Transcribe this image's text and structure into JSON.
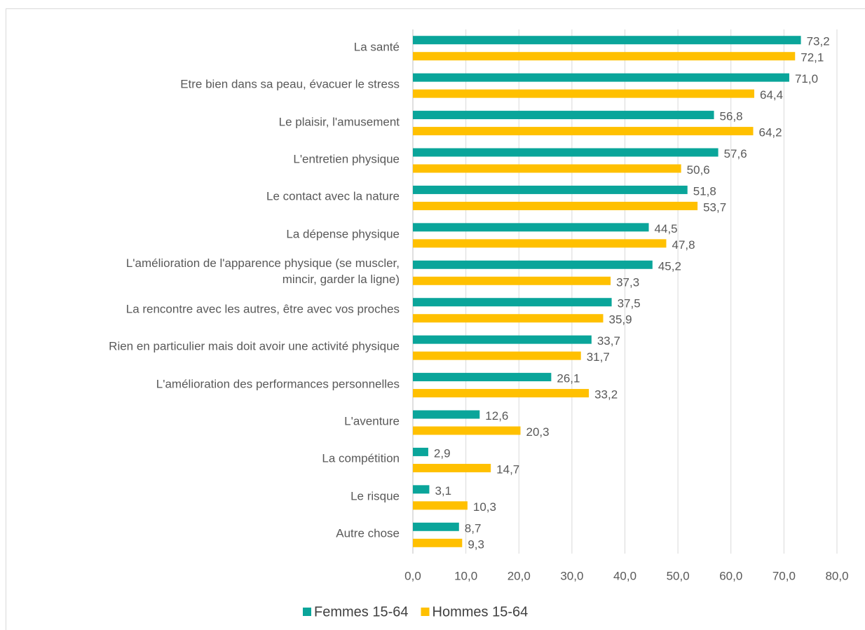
{
  "chart_data": {
    "type": "hbar",
    "categories": [
      "La santé",
      "Etre bien dans sa peau, évacuer le stress",
      "Le plaisir, l'amusement",
      "L'entretien physique",
      "Le contact avec la nature",
      "La dépense physique",
      "L'amélioration de l'apparence physique (se muscler,\nmincir, garder la ligne)",
      "La rencontre avec les autres, être avec vos proches",
      "Rien en particulier mais doit avoir une activité physique",
      "L'amélioration des performances personnelles",
      "L'aventure",
      "La compétition",
      "Le risque",
      "Autre chose"
    ],
    "series": [
      {
        "name": "Femmes 15-64",
        "color": "#0aa59a",
        "values": [
          73.2,
          71.0,
          56.8,
          57.6,
          51.8,
          44.5,
          45.2,
          37.5,
          33.7,
          26.1,
          12.6,
          2.9,
          3.1,
          8.7
        ],
        "value_labels": [
          "73,2",
          "71,0",
          "56,8",
          "57,6",
          "51,8",
          "44,5",
          "45,2",
          "37,5",
          "33,7",
          "26,1",
          "12,6",
          "2,9",
          "3,1",
          "8,7"
        ]
      },
      {
        "name": "Hommes 15-64",
        "color": "#ffc000",
        "values": [
          72.1,
          64.4,
          64.2,
          50.6,
          53.7,
          47.8,
          37.3,
          35.9,
          31.7,
          33.2,
          20.3,
          14.7,
          10.3,
          9.3
        ],
        "value_labels": [
          "72,1",
          "64,4",
          "64,2",
          "50,6",
          "53,7",
          "47,8",
          "37,3",
          "35,9",
          "31,7",
          "33,2",
          "20,3",
          "14,7",
          "10,3",
          "9,3"
        ]
      }
    ],
    "xlim": [
      0,
      80
    ],
    "xticks": [
      {
        "value": 0,
        "label": "0,0"
      },
      {
        "value": 10,
        "label": "10,0"
      },
      {
        "value": 20,
        "label": "20,0"
      },
      {
        "value": 30,
        "label": "30,0"
      },
      {
        "value": 40,
        "label": "40,0"
      },
      {
        "value": 50,
        "label": "50,0"
      },
      {
        "value": 60,
        "label": "60,0"
      },
      {
        "value": 70,
        "label": "70,0"
      },
      {
        "value": 80,
        "label": "80,0"
      }
    ],
    "grid": true,
    "legend": "bottom"
  }
}
